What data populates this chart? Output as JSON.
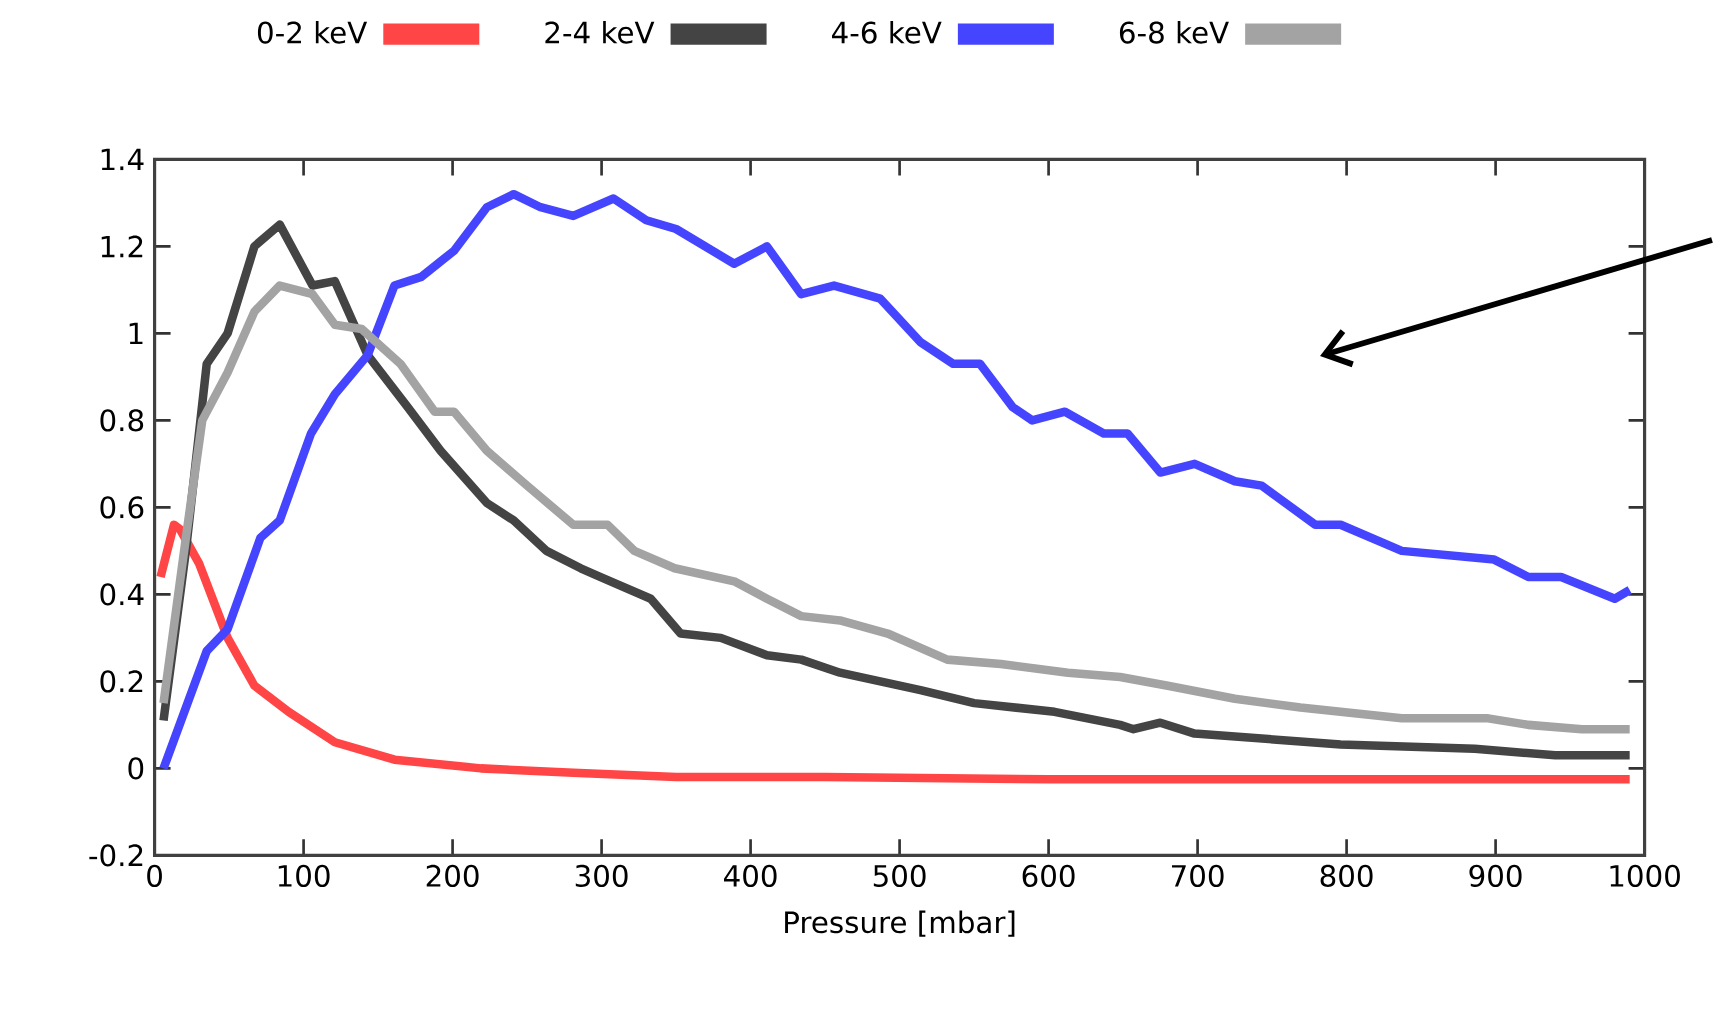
{
  "chart_data": {
    "type": "line",
    "xlabel": "Pressure [mbar]",
    "xlim": [
      0,
      1000
    ],
    "ylim": [
      -0.2,
      1.4
    ],
    "xticks": [
      0,
      100,
      200,
      300,
      400,
      500,
      600,
      700,
      800,
      900,
      1000
    ],
    "yticks": [
      -0.2,
      0,
      0.2,
      0.4,
      0.6,
      0.8,
      1,
      1.2,
      1.4
    ],
    "legend": "top",
    "grid": false,
    "marker": "none",
    "line_style": "solid",
    "series": [
      {
        "name": "0-2 keV",
        "color": "#ff4545",
        "x": [
          4,
          13,
          17,
          30,
          49,
          67,
          90,
          121,
          161,
          219,
          281,
          350,
          450,
          600,
          750,
          900,
          990
        ],
        "values": [
          0.44,
          0.56,
          0.55,
          0.47,
          0.3,
          0.19,
          0.13,
          0.06,
          0.02,
          0.0,
          -0.01,
          -0.02,
          -0.02,
          -0.025,
          -0.025,
          -0.025,
          -0.025
        ]
      },
      {
        "name": "2-4 keV",
        "color": "#444444",
        "x": [
          6,
          21,
          35,
          49,
          67,
          84,
          106,
          121,
          143,
          170,
          192,
          223,
          241,
          263,
          286,
          299,
          333,
          353,
          380,
          411,
          434,
          460,
          514,
          550,
          604,
          648,
          657,
          675,
          698,
          796,
          886,
          940,
          990
        ],
        "values": [
          0.11,
          0.5,
          0.93,
          1.0,
          1.2,
          1.25,
          1.11,
          1.12,
          0.95,
          0.83,
          0.73,
          0.61,
          0.57,
          0.5,
          0.46,
          0.44,
          0.39,
          0.31,
          0.3,
          0.26,
          0.25,
          0.22,
          0.18,
          0.15,
          0.13,
          0.1,
          0.09,
          0.105,
          0.08,
          0.055,
          0.045,
          0.03,
          0.03
        ]
      },
      {
        "name": "4-6 keV",
        "color": "#4545ff",
        "x": [
          6,
          35,
          49,
          71,
          84,
          105,
          121,
          143,
          161,
          179,
          201,
          223,
          241,
          259,
          281,
          308,
          330,
          350,
          389,
          411,
          434,
          456,
          487,
          514,
          536,
          554,
          576,
          589,
          611,
          637,
          653,
          675,
          698,
          725,
          743,
          779,
          796,
          837,
          899,
          922,
          944,
          980,
          990
        ],
        "values": [
          0.0,
          0.27,
          0.32,
          0.53,
          0.57,
          0.77,
          0.86,
          0.95,
          1.11,
          1.13,
          1.19,
          1.29,
          1.32,
          1.29,
          1.27,
          1.31,
          1.26,
          1.24,
          1.16,
          1.2,
          1.09,
          1.11,
          1.08,
          0.98,
          0.93,
          0.93,
          0.83,
          0.8,
          0.82,
          0.77,
          0.77,
          0.68,
          0.7,
          0.66,
          0.65,
          0.56,
          0.56,
          0.5,
          0.48,
          0.44,
          0.44,
          0.39,
          0.41
        ]
      },
      {
        "name": "6-8 keV",
        "color": "#a3a3a3",
        "x": [
          6,
          21,
          32,
          49,
          67,
          84,
          106,
          121,
          139,
          165,
          188,
          201,
          223,
          250,
          281,
          304,
          322,
          349,
          389,
          411,
          434,
          460,
          492,
          532,
          568,
          613,
          648,
          680,
          725,
          769,
          837,
          895,
          922,
          958,
          990
        ],
        "values": [
          0.15,
          0.53,
          0.8,
          0.91,
          1.05,
          1.11,
          1.09,
          1.02,
          1.01,
          0.93,
          0.82,
          0.82,
          0.73,
          0.65,
          0.56,
          0.56,
          0.5,
          0.46,
          0.43,
          0.39,
          0.35,
          0.34,
          0.31,
          0.25,
          0.24,
          0.22,
          0.21,
          0.19,
          0.16,
          0.14,
          0.115,
          0.115,
          0.1,
          0.09,
          0.09
        ]
      }
    ]
  }
}
